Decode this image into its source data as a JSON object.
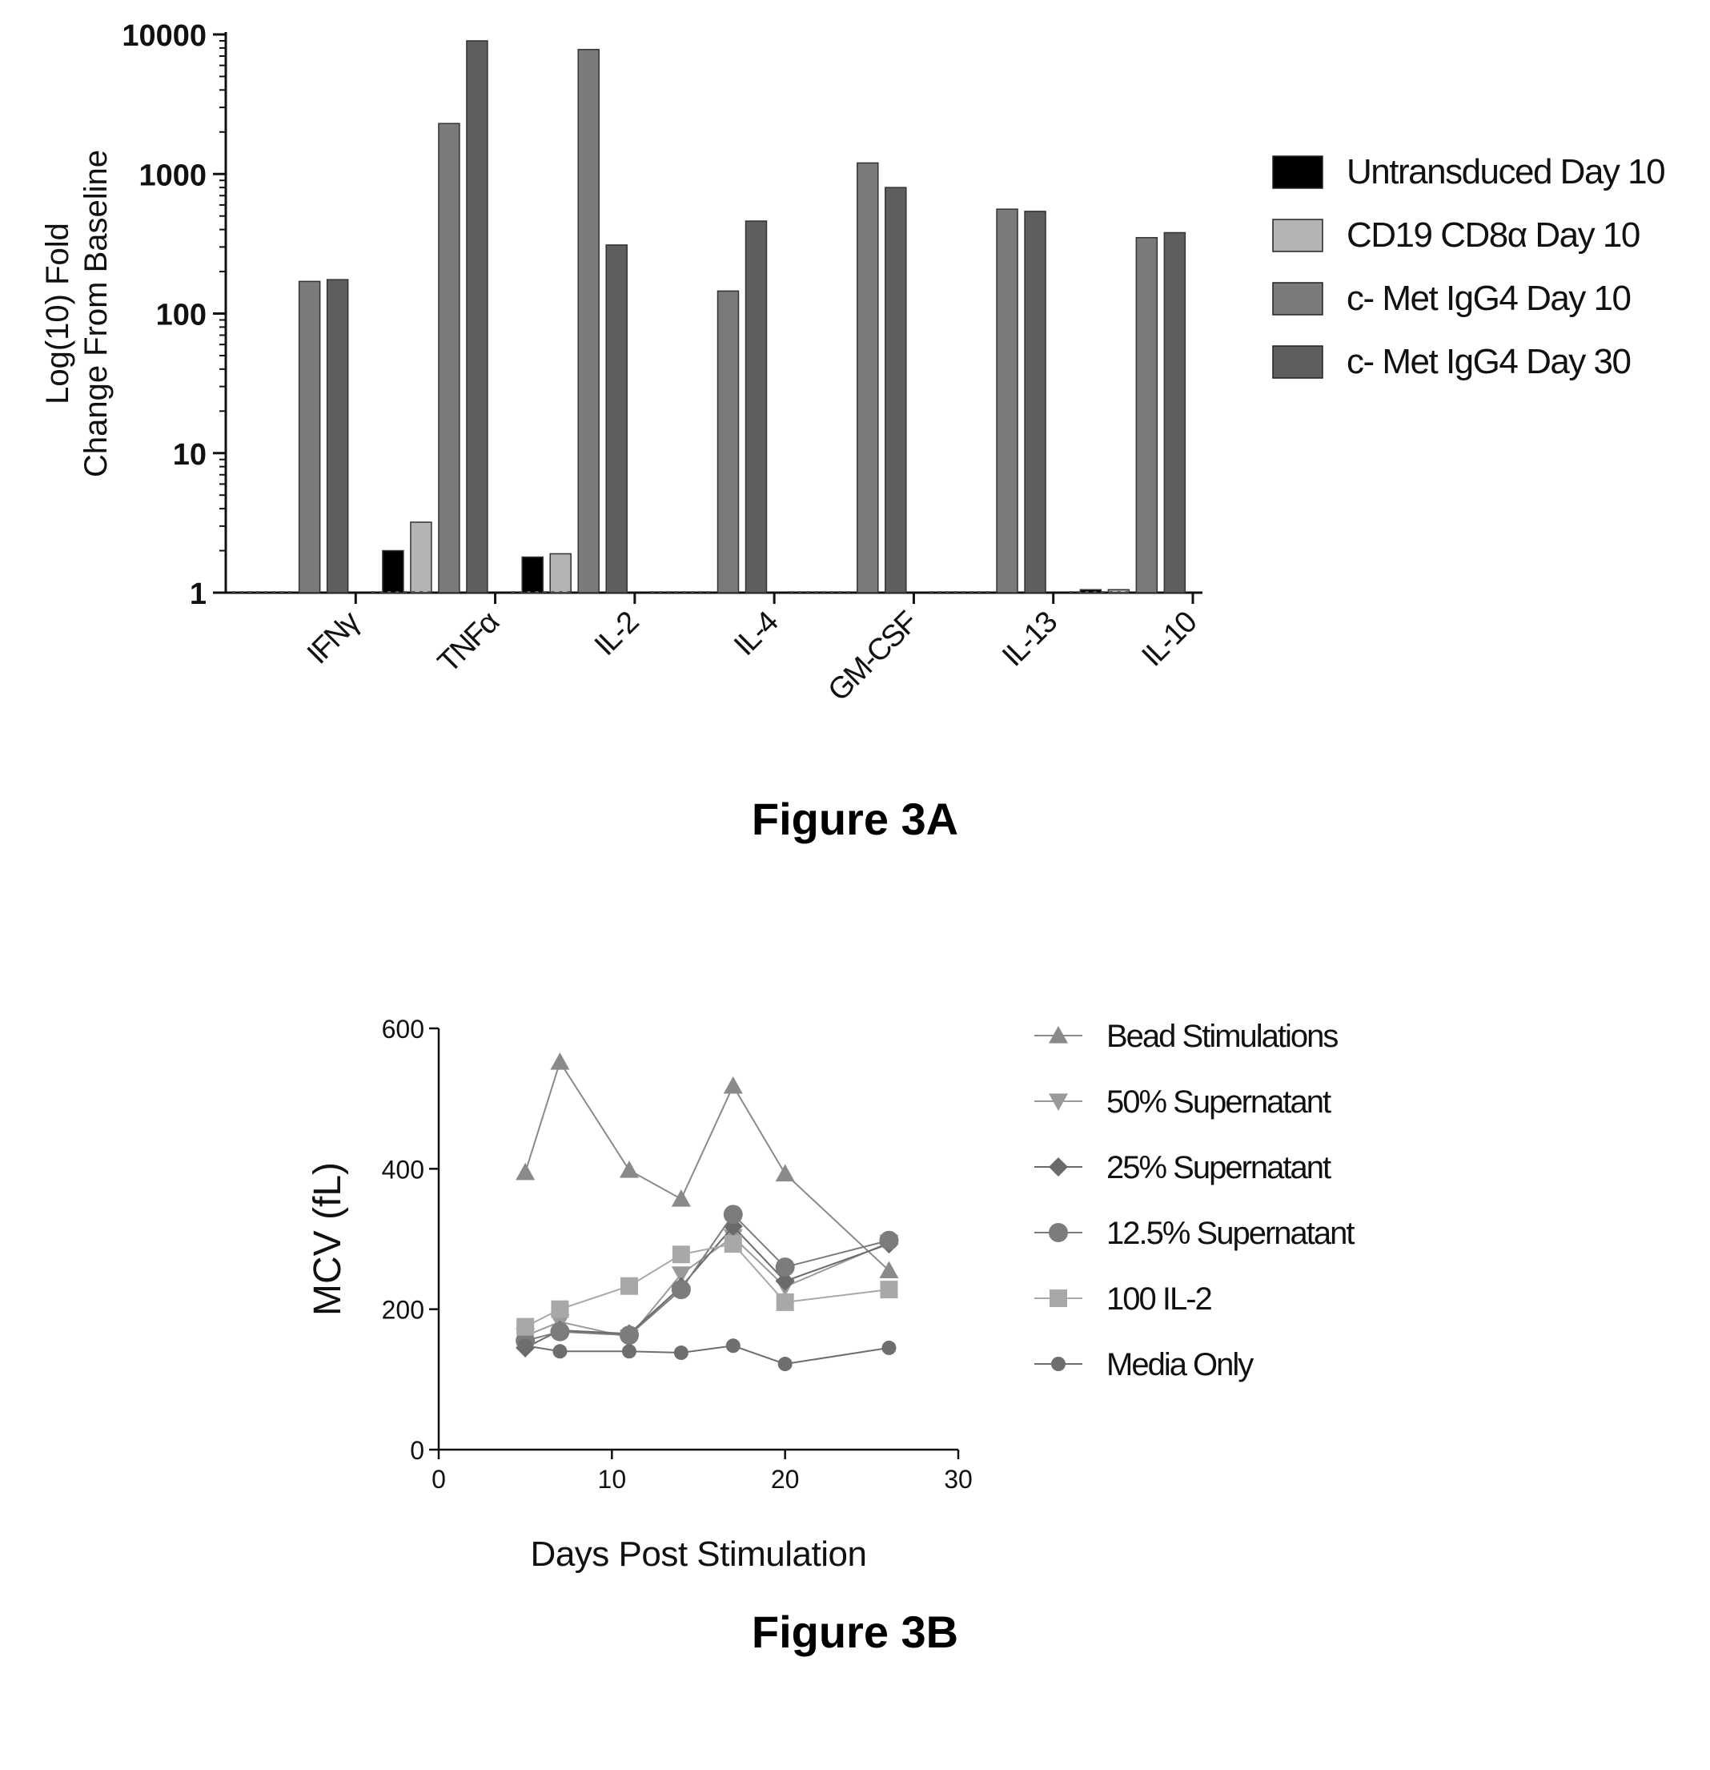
{
  "figures": [
    {
      "caption": "Figure 3A"
    },
    {
      "caption": "Figure 3B"
    }
  ],
  "chart_data": [
    {
      "type": "bar",
      "title": "",
      "xlabel": "",
      "ylabel": "Log(10) Fold Change From Baseline",
      "ylabel_lines": [
        "Log(10) Fold",
        "Change From Baseline"
      ],
      "yscale": "log",
      "ylim": [
        1,
        10000
      ],
      "yticks": [
        "1",
        "10",
        "100",
        "1000",
        "10000"
      ],
      "categories": [
        "IFNγ",
        "TNFα",
        "IL-2",
        "IL-4",
        "GM-CSF",
        "IL-13",
        "IL-10"
      ],
      "series": [
        {
          "name": "Untransduced Day 10",
          "color": "#000000",
          "values": [
            null,
            2.0,
            1.8,
            null,
            null,
            null,
            1.05
          ]
        },
        {
          "name": "CD19 CD8α Day 10",
          "color": "#b4b4b4",
          "values": [
            null,
            3.2,
            1.9,
            null,
            null,
            null,
            1.05
          ]
        },
        {
          "name": "c- Met IgG4 Day 10",
          "color": "#7a7a7a",
          "values": [
            170,
            2300,
            7800,
            145,
            1200,
            560,
            350
          ]
        },
        {
          "name": "c- Met IgG4 Day 30",
          "color": "#5e5e5e",
          "values": [
            175,
            9000,
            310,
            460,
            800,
            540,
            380
          ]
        }
      ],
      "legend_position": "right",
      "grid": false
    },
    {
      "type": "line",
      "title": "",
      "xlabel": "Days Post Stimulation",
      "ylabel": "MCV (fL)",
      "xlim": [
        0,
        30
      ],
      "ylim": [
        0,
        600
      ],
      "xticks": [
        "0",
        "10",
        "20",
        "30"
      ],
      "yticks": [
        "0",
        "200",
        "400",
        "600"
      ],
      "x": [
        5,
        7,
        11,
        14,
        17,
        20,
        26
      ],
      "series": [
        {
          "name": "Bead Stimulations",
          "marker": "triangle-up",
          "color": "#8a8a8a",
          "values": [
            395,
            552,
            398,
            357,
            518,
            393,
            255
          ]
        },
        {
          "name": "50% Supernatant",
          "marker": "triangle-down",
          "color": "#9a9a9a",
          "values": [
            162,
            182,
            160,
            250,
            303,
            232,
            295
          ]
        },
        {
          "name": "25% Supernatant",
          "marker": "diamond",
          "color": "#6a6a6a",
          "values": [
            145,
            170,
            165,
            232,
            318,
            240,
            293
          ]
        },
        {
          "name": "12.5% Supernatant",
          "marker": "circle",
          "color": "#7c7c7c",
          "values": [
            155,
            168,
            163,
            228,
            335,
            260,
            298
          ]
        },
        {
          "name": "100 IL-2",
          "marker": "square",
          "color": "#a8a8a8",
          "values": [
            175,
            200,
            233,
            278,
            293,
            210,
            228
          ]
        },
        {
          "name": "Media Only",
          "marker": "circle-small",
          "color": "#6e6e6e",
          "values": [
            148,
            140,
            140,
            138,
            148,
            122,
            145
          ]
        }
      ],
      "legend_position": "right",
      "grid": false
    }
  ]
}
